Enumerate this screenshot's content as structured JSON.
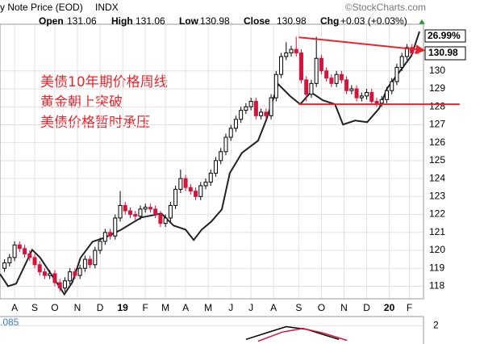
{
  "chart_data": {
    "type": "candlestick",
    "title": "y Note Price (EOD)",
    "exchange": "INDX",
    "source": "©StockCharts.com",
    "header": [
      {
        "label": "Open",
        "value": 131.06
      },
      {
        "label": "High",
        "value": 131.06
      },
      {
        "label": "Low",
        "value": 130.98
      },
      {
        "label": "Close",
        "value": 130.98
      },
      {
        "label": "Chg",
        "value": "+0.03 (+0.03%)"
      }
    ],
    "annotations": [
      "美债10年期价格周线",
      "黄金朝上突破",
      "美债价格暂时承压"
    ],
    "up_color": "#000000",
    "down_color": "#d4143c",
    "line_color": "#222222",
    "trend_color": "#e8242c",
    "x": [
      0,
      1,
      2,
      3,
      4,
      5,
      6,
      7,
      8,
      9,
      10,
      11,
      12,
      13,
      14,
      15,
      16,
      17,
      18,
      19,
      20,
      21,
      22,
      23,
      24,
      25,
      26,
      27,
      28,
      29,
      30,
      31,
      32,
      33,
      34,
      35,
      36,
      37,
      38,
      39,
      40,
      41,
      42,
      43,
      44,
      45,
      46,
      47,
      48,
      49,
      50,
      51,
      52,
      53,
      54,
      55,
      56,
      57,
      58,
      59,
      60,
      61,
      62,
      63,
      64,
      65,
      66,
      67,
      68,
      69,
      70,
      71,
      72,
      73,
      74,
      75,
      76,
      77,
      78,
      79,
      80,
      81,
      82
    ],
    "candles": [
      [
        119.0,
        119.5,
        118.8,
        119.3
      ],
      [
        119.3,
        119.8,
        119.1,
        119.6
      ],
      [
        119.6,
        120.5,
        119.4,
        120.3
      ],
      [
        120.3,
        120.5,
        119.9,
        120.1
      ],
      [
        120.1,
        120.3,
        119.6,
        119.8
      ],
      [
        119.8,
        120.0,
        119.4,
        119.6
      ],
      [
        119.6,
        119.8,
        119.0,
        119.2
      ],
      [
        119.2,
        119.4,
        118.6,
        118.8
      ],
      [
        118.8,
        119.0,
        118.4,
        118.6
      ],
      [
        118.6,
        118.9,
        118.4,
        118.7
      ],
      [
        118.7,
        118.9,
        118.0,
        118.2
      ],
      [
        118.2,
        118.4,
        117.7,
        117.9
      ],
      [
        117.9,
        118.5,
        117.7,
        118.3
      ],
      [
        118.3,
        119.0,
        118.1,
        118.8
      ],
      [
        118.8,
        119.0,
        118.4,
        118.6
      ],
      [
        118.6,
        119.2,
        118.4,
        119.0
      ],
      [
        119.0,
        119.7,
        118.8,
        119.5
      ],
      [
        119.5,
        119.7,
        119.0,
        119.2
      ],
      [
        119.2,
        120.2,
        119.0,
        120.0
      ],
      [
        120.0,
        120.7,
        119.8,
        120.5
      ],
      [
        120.5,
        121.2,
        120.3,
        121.0
      ],
      [
        121.0,
        121.2,
        120.6,
        120.8
      ],
      [
        120.8,
        122.0,
        120.6,
        121.8
      ],
      [
        121.8,
        123.3,
        121.6,
        122.5
      ],
      [
        122.5,
        122.7,
        122.0,
        122.2
      ],
      [
        122.2,
        122.4,
        121.8,
        122.0
      ],
      [
        122.0,
        122.2,
        121.7,
        121.9
      ],
      [
        121.9,
        122.5,
        121.7,
        122.3
      ],
      [
        122.3,
        122.6,
        122.1,
        122.4
      ],
      [
        122.4,
        122.6,
        122.1,
        122.3
      ],
      [
        122.3,
        122.5,
        121.8,
        122.0
      ],
      [
        122.0,
        122.2,
        121.3,
        121.5
      ],
      [
        121.5,
        122.0,
        121.3,
        121.8
      ],
      [
        121.8,
        122.7,
        121.6,
        122.5
      ],
      [
        122.5,
        123.6,
        122.3,
        123.4
      ],
      [
        123.4,
        124.5,
        123.2,
        124.0
      ],
      [
        124.0,
        124.2,
        123.3,
        123.5
      ],
      [
        123.5,
        123.7,
        123.1,
        123.3
      ],
      [
        123.3,
        123.5,
        122.8,
        123.0
      ],
      [
        123.0,
        123.8,
        122.8,
        123.6
      ],
      [
        123.6,
        124.0,
        123.4,
        123.8
      ],
      [
        123.8,
        124.5,
        123.6,
        124.3
      ],
      [
        124.3,
        125.2,
        124.1,
        125.0
      ],
      [
        125.0,
        125.7,
        124.8,
        125.5
      ],
      [
        125.5,
        126.5,
        125.3,
        126.3
      ],
      [
        126.3,
        127.0,
        126.1,
        126.8
      ],
      [
        126.8,
        127.5,
        126.6,
        127.3
      ],
      [
        127.3,
        128.0,
        127.1,
        127.8
      ],
      [
        127.8,
        128.2,
        127.6,
        128.0
      ],
      [
        128.0,
        128.5,
        127.8,
        128.3
      ],
      [
        128.3,
        128.5,
        127.3,
        127.5
      ],
      [
        127.5,
        127.9,
        127.3,
        127.7
      ],
      [
        127.7,
        127.9,
        127.3,
        127.5
      ],
      [
        127.5,
        128.7,
        127.3,
        128.5
      ],
      [
        128.5,
        130.0,
        128.3,
        129.8
      ],
      [
        129.8,
        131.0,
        129.6,
        130.8
      ],
      [
        130.8,
        131.6,
        130.6,
        131.0
      ],
      [
        131.0,
        131.4,
        130.8,
        131.2
      ],
      [
        131.2,
        131.9,
        130.8,
        131.0
      ],
      [
        131.0,
        131.2,
        129.3,
        129.5
      ],
      [
        129.5,
        129.7,
        128.3,
        128.7
      ],
      [
        128.7,
        129.5,
        128.5,
        129.3
      ],
      [
        129.3,
        131.9,
        129.1,
        130.7
      ],
      [
        130.7,
        130.9,
        129.8,
        130.0
      ],
      [
        130.0,
        130.2,
        129.4,
        129.6
      ],
      [
        129.6,
        129.8,
        129.1,
        129.3
      ],
      [
        129.3,
        130.0,
        129.1,
        129.8
      ],
      [
        129.8,
        130.0,
        129.3,
        129.5
      ],
      [
        129.5,
        129.7,
        128.7,
        128.9
      ],
      [
        128.9,
        129.2,
        128.7,
        129.0
      ],
      [
        129.0,
        129.2,
        128.3,
        128.5
      ],
      [
        128.5,
        128.8,
        128.3,
        128.6
      ],
      [
        128.6,
        129.0,
        128.4,
        128.8
      ],
      [
        128.8,
        129.0,
        128.1,
        128.3
      ],
      [
        128.3,
        128.5,
        128.0,
        128.2
      ],
      [
        128.2,
        128.6,
        128.0,
        128.4
      ],
      [
        128.4,
        129.1,
        128.2,
        128.9
      ],
      [
        128.9,
        129.6,
        128.7,
        129.4
      ],
      [
        129.4,
        130.4,
        129.2,
        130.2
      ],
      [
        130.2,
        131.0,
        130.0,
        130.8
      ],
      [
        130.8,
        131.5,
        130.6,
        131.3
      ],
      [
        131.3,
        131.5,
        130.8,
        131.0
      ],
      [
        131.06,
        131.06,
        130.98,
        130.98
      ]
    ],
    "overlay": {
      "x": [
        -0.9,
        0.7,
        2.3,
        5.5,
        7.1,
        8.7,
        11.9,
        13.5,
        15.1,
        17.5,
        19.9,
        23.2,
        27.2,
        31.2,
        33.6,
        36.0,
        37.6,
        39.2,
        41.1,
        43.2,
        44.8,
        47.2,
        50.4,
        52.0,
        54.4,
        56.8,
        58.8,
        60.9,
        63.3,
        65.7,
        67.3,
        69.7,
        72.1,
        74.5,
        76.1,
        78.5,
        80.9,
        82.5
      ],
      "values": [
        118.68,
        118.0,
        118.14,
        120.03,
        119.58,
        118.9,
        117.55,
        118.23,
        119.58,
        120.48,
        120.7,
        121.15,
        121.83,
        122.05,
        121.38,
        121.15,
        120.57,
        121.15,
        121.6,
        122.28,
        124.31,
        125.43,
        126.11,
        127.23,
        129.26,
        128.59,
        128.14,
        128.81,
        128.36,
        128.14,
        127.01,
        127.23,
        127.14,
        127.91,
        129.04,
        129.94,
        130.84,
        132.19
      ],
      "tag": "26.99%"
    },
    "trendlines": [
      {
        "x": [
          58.5,
          83.3
        ],
        "values": [
          131.87,
          131.15
        ]
      },
      {
        "x": [
          58.5,
          90.5
        ],
        "values": [
          128.14,
          128.14
        ]
      }
    ],
    "xlim": [
      -0.9,
      83.3
    ],
    "ylim": [
      117.3,
      132.6
    ],
    "yticks": [
      118,
      119,
      120,
      121,
      122,
      123,
      124,
      125,
      126,
      127,
      128,
      129,
      130
    ],
    "xticks": [
      {
        "value": 2,
        "label": "A"
      },
      {
        "value": 6,
        "label": "S"
      },
      {
        "value": 10,
        "label": "O"
      },
      {
        "value": 14.5,
        "label": "N"
      },
      {
        "value": 19,
        "label": "D"
      },
      {
        "value": 23.5,
        "label": "19"
      },
      {
        "value": 28,
        "label": "F"
      },
      {
        "value": 32,
        "label": "M"
      },
      {
        "value": 36,
        "label": "A"
      },
      {
        "value": 40.5,
        "label": "M"
      },
      {
        "value": 45,
        "label": "J"
      },
      {
        "value": 49,
        "label": "J"
      },
      {
        "value": 53.5,
        "label": "A"
      },
      {
        "value": 58.5,
        "label": "S"
      },
      {
        "value": 63,
        "label": "O"
      },
      {
        "value": 67.5,
        "label": "N"
      },
      {
        "value": 72,
        "label": "D"
      },
      {
        "value": 76.5,
        "label": "20"
      },
      {
        "value": 80.5,
        "label": "F"
      }
    ],
    "grid": true,
    "indicator": {
      "label": ".085",
      "ylim": [
        0,
        3
      ],
      "yticks": [
        2
      ],
      "series": [
        {
          "color": "#000000",
          "x": [
            48.0,
            52.0,
            56.0,
            60.1,
            64.1,
            66.5
          ],
          "values": [
            0.5,
            1.2,
            1.9,
            1.6,
            0.9,
            0.5
          ]
        },
        {
          "color": "#d4143c",
          "x": [
            50.4,
            55.2,
            59.3,
            63.3,
            68.1
          ],
          "values": [
            0.3,
            1.3,
            1.7,
            1.2,
            0.4
          ]
        }
      ]
    }
  }
}
